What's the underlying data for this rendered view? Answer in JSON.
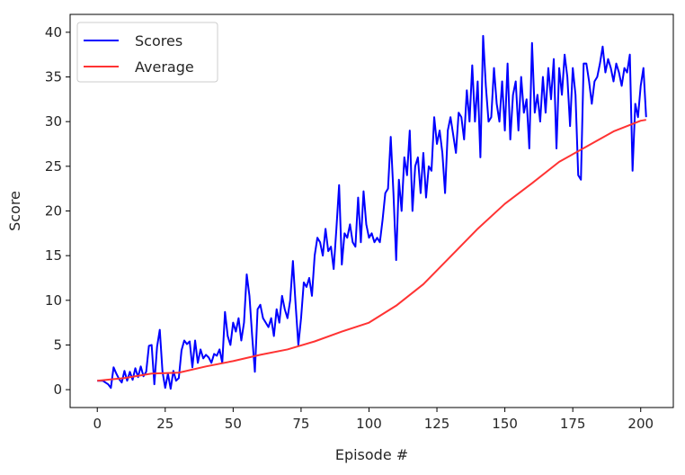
{
  "chart_data": {
    "type": "line",
    "xlabel": "Episode #",
    "ylabel": "Score",
    "xlim": [
      -10,
      212
    ],
    "ylim": [
      -2,
      42
    ],
    "xticks": [
      0,
      25,
      50,
      75,
      100,
      125,
      150,
      175,
      200
    ],
    "yticks": [
      0,
      5,
      10,
      15,
      20,
      25,
      30,
      35,
      40
    ],
    "grid": false,
    "legend": "top-left",
    "series": [
      {
        "name": "Scores",
        "color": "#0000ff",
        "points": [
          [
            0,
            1.0
          ],
          [
            2,
            1.0
          ],
          [
            4,
            0.6
          ],
          [
            5,
            0.2
          ],
          [
            6,
            2.5
          ],
          [
            7,
            1.8
          ],
          [
            8,
            1.2
          ],
          [
            9,
            0.8
          ],
          [
            10,
            2.1
          ],
          [
            11,
            1.0
          ],
          [
            12,
            2.0
          ],
          [
            13,
            1.1
          ],
          [
            14,
            2.4
          ],
          [
            15,
            1.4
          ],
          [
            16,
            2.6
          ],
          [
            17,
            1.5
          ],
          [
            18,
            2.0
          ],
          [
            19,
            4.9
          ],
          [
            20,
            5.0
          ],
          [
            21,
            0.6
          ],
          [
            22,
            4.8
          ],
          [
            23,
            6.7
          ],
          [
            24,
            2.0
          ],
          [
            25,
            0.2
          ],
          [
            26,
            1.8
          ],
          [
            27,
            0.1
          ],
          [
            28,
            2.1
          ],
          [
            29,
            1.0
          ],
          [
            30,
            1.3
          ],
          [
            31,
            4.4
          ],
          [
            32,
            5.5
          ],
          [
            33,
            5.1
          ],
          [
            34,
            5.4
          ],
          [
            35,
            2.5
          ],
          [
            36,
            5.5
          ],
          [
            37,
            3.0
          ],
          [
            38,
            4.5
          ],
          [
            39,
            3.5
          ],
          [
            40,
            3.9
          ],
          [
            41,
            3.6
          ],
          [
            42,
            3.0
          ],
          [
            43,
            4.0
          ],
          [
            44,
            3.8
          ],
          [
            45,
            4.5
          ],
          [
            46,
            3.0
          ],
          [
            47,
            8.7
          ],
          [
            48,
            6.0
          ],
          [
            49,
            5.0
          ],
          [
            50,
            7.5
          ],
          [
            51,
            6.5
          ],
          [
            52,
            8.0
          ],
          [
            53,
            5.5
          ],
          [
            54,
            7.5
          ],
          [
            55,
            12.9
          ],
          [
            56,
            10.5
          ],
          [
            57,
            6.0
          ],
          [
            58,
            2.0
          ],
          [
            59,
            9.0
          ],
          [
            60,
            9.5
          ],
          [
            61,
            8.0
          ],
          [
            62,
            7.5
          ],
          [
            63,
            7.0
          ],
          [
            64,
            8.0
          ],
          [
            65,
            6.0
          ],
          [
            66,
            9.0
          ],
          [
            67,
            7.5
          ],
          [
            68,
            10.5
          ],
          [
            69,
            9.0
          ],
          [
            70,
            8.0
          ],
          [
            71,
            10.0
          ],
          [
            72,
            14.4
          ],
          [
            73,
            9.5
          ],
          [
            74,
            5.0
          ],
          [
            75,
            8.0
          ],
          [
            76,
            12.0
          ],
          [
            77,
            11.5
          ],
          [
            78,
            12.5
          ],
          [
            79,
            10.5
          ],
          [
            80,
            15.0
          ],
          [
            81,
            17.0
          ],
          [
            82,
            16.5
          ],
          [
            83,
            15.0
          ],
          [
            84,
            18.0
          ],
          [
            85,
            15.5
          ],
          [
            86,
            16.0
          ],
          [
            87,
            13.5
          ],
          [
            88,
            18.0
          ],
          [
            89,
            22.9
          ],
          [
            90,
            14.0
          ],
          [
            91,
            17.5
          ],
          [
            92,
            17.0
          ],
          [
            93,
            18.5
          ],
          [
            94,
            16.5
          ],
          [
            95,
            16.0
          ],
          [
            96,
            21.5
          ],
          [
            97,
            16.5
          ],
          [
            98,
            22.2
          ],
          [
            99,
            18.5
          ],
          [
            100,
            17.0
          ],
          [
            101,
            17.5
          ],
          [
            102,
            16.5
          ],
          [
            103,
            17.0
          ],
          [
            104,
            16.5
          ],
          [
            105,
            19.0
          ],
          [
            106,
            22.0
          ],
          [
            107,
            22.5
          ],
          [
            108,
            28.3
          ],
          [
            109,
            22.0
          ],
          [
            110,
            14.5
          ],
          [
            111,
            23.5
          ],
          [
            112,
            20.0
          ],
          [
            113,
            26.0
          ],
          [
            114,
            24.0
          ],
          [
            115,
            29.0
          ],
          [
            116,
            20.0
          ],
          [
            117,
            25.0
          ],
          [
            118,
            26.0
          ],
          [
            119,
            22.0
          ],
          [
            120,
            26.5
          ],
          [
            121,
            21.5
          ],
          [
            122,
            25.0
          ],
          [
            123,
            24.5
          ],
          [
            124,
            30.5
          ],
          [
            125,
            27.5
          ],
          [
            126,
            29.0
          ],
          [
            127,
            26.5
          ],
          [
            128,
            22.0
          ],
          [
            129,
            29.0
          ],
          [
            130,
            30.5
          ],
          [
            131,
            28.5
          ],
          [
            132,
            26.5
          ],
          [
            133,
            31.0
          ],
          [
            134,
            30.5
          ],
          [
            135,
            28.0
          ],
          [
            136,
            33.5
          ],
          [
            137,
            30.0
          ],
          [
            138,
            36.3
          ],
          [
            139,
            30.0
          ],
          [
            140,
            34.5
          ],
          [
            141,
            26.0
          ],
          [
            142,
            39.6
          ],
          [
            143,
            34.0
          ],
          [
            144,
            30.0
          ],
          [
            145,
            30.5
          ],
          [
            146,
            36.0
          ],
          [
            147,
            32.0
          ],
          [
            148,
            30.0
          ],
          [
            149,
            34.5
          ],
          [
            150,
            29.0
          ],
          [
            151,
            36.5
          ],
          [
            152,
            28.0
          ],
          [
            153,
            33.0
          ],
          [
            154,
            34.5
          ],
          [
            155,
            29.0
          ],
          [
            156,
            35.0
          ],
          [
            157,
            31.0
          ],
          [
            158,
            32.5
          ],
          [
            159,
            27.0
          ],
          [
            160,
            38.8
          ],
          [
            161,
            31.0
          ],
          [
            162,
            33.0
          ],
          [
            163,
            30.0
          ],
          [
            164,
            35.0
          ],
          [
            165,
            31.0
          ],
          [
            166,
            36.0
          ],
          [
            167,
            32.5
          ],
          [
            168,
            37.0
          ],
          [
            169,
            27.0
          ],
          [
            170,
            36.0
          ],
          [
            171,
            33.0
          ],
          [
            172,
            37.5
          ],
          [
            173,
            35.0
          ],
          [
            174,
            29.5
          ],
          [
            175,
            36.0
          ],
          [
            176,
            33.0
          ],
          [
            177,
            24.0
          ],
          [
            178,
            23.5
          ],
          [
            179,
            36.5
          ],
          [
            180,
            36.5
          ],
          [
            181,
            34.5
          ],
          [
            182,
            32.0
          ],
          [
            183,
            34.5
          ],
          [
            184,
            35.0
          ],
          [
            185,
            36.5
          ],
          [
            186,
            38.4
          ],
          [
            187,
            35.5
          ],
          [
            188,
            37.0
          ],
          [
            189,
            36.0
          ],
          [
            190,
            34.5
          ],
          [
            191,
            36.5
          ],
          [
            192,
            35.5
          ],
          [
            193,
            34.0
          ],
          [
            194,
            36.0
          ],
          [
            195,
            35.5
          ],
          [
            196,
            37.5
          ],
          [
            197,
            24.5
          ],
          [
            198,
            32.0
          ],
          [
            199,
            30.5
          ],
          [
            200,
            34.0
          ],
          [
            201,
            36.0
          ],
          [
            202,
            30.5
          ]
        ]
      },
      {
        "name": "Average",
        "color": "#ff3333",
        "points": [
          [
            0,
            1.0
          ],
          [
            10,
            1.3
          ],
          [
            20,
            1.8
          ],
          [
            30,
            1.9
          ],
          [
            40,
            2.6
          ],
          [
            50,
            3.2
          ],
          [
            60,
            3.9
          ],
          [
            70,
            4.5
          ],
          [
            80,
            5.4
          ],
          [
            90,
            6.5
          ],
          [
            100,
            7.5
          ],
          [
            110,
            9.4
          ],
          [
            120,
            11.8
          ],
          [
            130,
            14.9
          ],
          [
            140,
            18.0
          ],
          [
            150,
            20.8
          ],
          [
            160,
            23.1
          ],
          [
            170,
            25.5
          ],
          [
            180,
            27.2
          ],
          [
            190,
            28.9
          ],
          [
            200,
            30.1
          ],
          [
            202,
            30.2
          ]
        ]
      }
    ]
  }
}
